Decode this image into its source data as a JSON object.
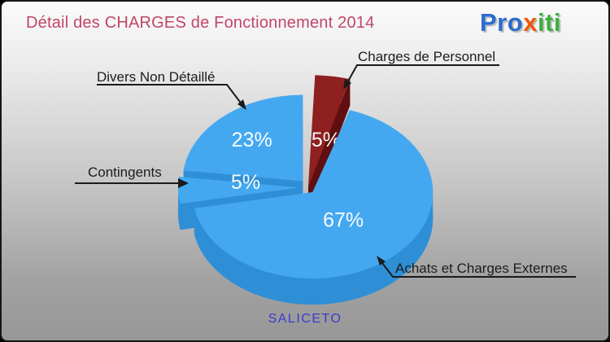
{
  "header": {
    "title": "Détail des CHARGES de Fonctionnement 2014",
    "title_color": "#C14668"
  },
  "logo": {
    "name": "Proxiti",
    "parts": [
      {
        "text": "Pro",
        "color": "#2B6CCE"
      },
      {
        "text": "x",
        "color": "#F0580E"
      },
      {
        "text": "iti",
        "color": "#3CAF3C"
      }
    ]
  },
  "footer": {
    "label": "SALICETO",
    "color": "#3A3AD0"
  },
  "chart_data": {
    "type": "pie",
    "title": "Détail des CHARGES de Fonctionnement 2014",
    "unit": "percent",
    "start_angle_deg": 0,
    "direction": "clockwise",
    "style": "3d-exploded",
    "legend_position": "callouts",
    "footer_label": "SALICETO",
    "value_label_color": "#FFFFFF",
    "slices": [
      {
        "label": "Charges de Personnel",
        "value": 5,
        "value_label": "5%",
        "color": "#8E2020",
        "side_color": "#6B1212",
        "exploded": true
      },
      {
        "label": "Achats et Charges Externes",
        "value": 67,
        "value_label": "67%",
        "color": "#44A8F1",
        "side_color": "#2F8FD6",
        "exploded": false
      },
      {
        "label": "Contingents",
        "value": 5,
        "value_label": "5%",
        "color": "#44A8F1",
        "side_color": "#2F8FD6",
        "exploded": true
      },
      {
        "label": "Divers Non Détaillé",
        "value": 23,
        "value_label": "23%",
        "color": "#44A8F1",
        "side_color": "#2F8FD6",
        "exploded": true
      }
    ]
  }
}
